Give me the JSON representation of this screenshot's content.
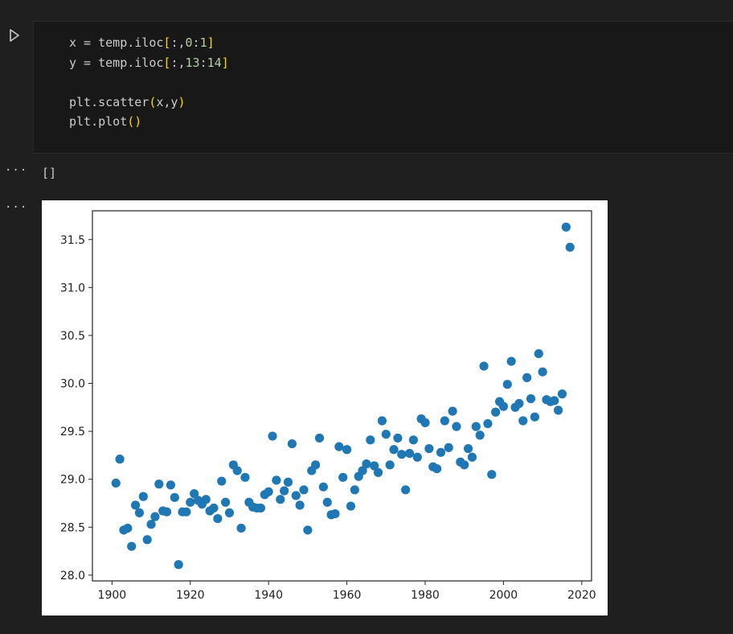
{
  "code_cell": {
    "run_icon": "play-triangle-icon",
    "lines": [
      [
        {
          "t": "x = temp.iloc",
          "c": ""
        },
        {
          "t": "[",
          "c": "tk-br"
        },
        {
          "t": ":,",
          "c": ""
        },
        {
          "t": "0",
          "c": "tk-num"
        },
        {
          "t": ":",
          "c": ""
        },
        {
          "t": "1",
          "c": "tk-num"
        },
        {
          "t": "]",
          "c": "tk-br"
        }
      ],
      [
        {
          "t": "y = temp.iloc",
          "c": ""
        },
        {
          "t": "[",
          "c": "tk-br"
        },
        {
          "t": ":,",
          "c": ""
        },
        {
          "t": "13",
          "c": "tk-num"
        },
        {
          "t": ":",
          "c": ""
        },
        {
          "t": "14",
          "c": "tk-num"
        },
        {
          "t": "]",
          "c": "tk-br"
        }
      ],
      [],
      [
        {
          "t": "plt.scatter",
          "c": ""
        },
        {
          "t": "(",
          "c": "tk-br"
        },
        {
          "t": "x,y",
          "c": ""
        },
        {
          "t": ")",
          "c": "tk-br"
        }
      ],
      [
        {
          "t": "plt.plot",
          "c": ""
        },
        {
          "t": "()",
          "c": "tk-br"
        }
      ]
    ]
  },
  "outputs": {
    "dots_1": "···",
    "text_output": "[]",
    "dots_2": "···"
  },
  "colors": {
    "background": "#1f1f1f",
    "cell_background": "#181818",
    "code_text": "#cccccc",
    "bracket": "#ffd700",
    "number": "#b5cea8",
    "marker": "#1f77b4"
  },
  "chart_data": {
    "type": "scatter",
    "title": "",
    "xlabel": "",
    "ylabel": "",
    "xlim": [
      1895,
      2022.5
    ],
    "ylim": [
      27.94,
      31.8
    ],
    "xticks": [
      1900,
      1920,
      1940,
      1960,
      1980,
      2000,
      2020
    ],
    "yticks": [
      28.0,
      28.5,
      29.0,
      29.5,
      30.0,
      30.5,
      31.0,
      31.5
    ],
    "xticklabels": [
      "1900",
      "1920",
      "1940",
      "1960",
      "1980",
      "2000",
      "2020"
    ],
    "yticklabels": [
      "28.0",
      "28.5",
      "29.0",
      "29.5",
      "30.0",
      "30.5",
      "31.0",
      "31.5"
    ],
    "grid": false,
    "series": [
      {
        "x": [
          1901,
          1902,
          1903,
          1904,
          1905,
          1906,
          1907,
          1908,
          1909,
          1910,
          1911,
          1912,
          1913,
          1914,
          1915,
          1916,
          1917,
          1918,
          1919,
          1920,
          1921,
          1922,
          1923,
          1924,
          1925,
          1926,
          1927,
          1928,
          1929,
          1930,
          1931,
          1932,
          1933,
          1934,
          1935,
          1936,
          1937,
          1938,
          1939,
          1940,
          1941,
          1942,
          1943,
          1944,
          1945,
          1946,
          1947,
          1948,
          1949,
          1950,
          1951,
          1952,
          1953,
          1954,
          1955,
          1956,
          1957,
          1958,
          1959,
          1960,
          1961,
          1962,
          1963,
          1964,
          1965,
          1966,
          1967,
          1968,
          1969,
          1970,
          1971,
          1972,
          1973,
          1974,
          1975,
          1976,
          1977,
          1978,
          1979,
          1980,
          1981,
          1982,
          1983,
          1984,
          1985,
          1986,
          1987,
          1988,
          1989,
          1990,
          1991,
          1992,
          1993,
          1994,
          1995,
          1996,
          1997,
          1998,
          1999,
          2000,
          2001,
          2002,
          2003,
          2004,
          2005,
          2006,
          2007,
          2008,
          2009,
          2010,
          2011,
          2012,
          2013,
          2014,
          2015,
          2016,
          2017
        ],
        "y": [
          28.96,
          29.21,
          28.47,
          28.49,
          28.3,
          28.73,
          28.65,
          28.82,
          28.37,
          28.53,
          28.61,
          28.95,
          28.67,
          28.66,
          28.94,
          28.81,
          28.11,
          28.66,
          28.66,
          28.76,
          28.85,
          28.78,
          28.74,
          28.79,
          28.67,
          28.7,
          28.59,
          28.98,
          28.76,
          28.65,
          29.15,
          29.09,
          28.49,
          29.02,
          28.76,
          28.71,
          28.7,
          28.7,
          28.84,
          28.87,
          29.45,
          28.99,
          28.79,
          28.88,
          28.97,
          29.37,
          28.83,
          28.73,
          28.89,
          28.47,
          29.09,
          29.15,
          29.43,
          28.92,
          28.76,
          28.63,
          28.64,
          29.34,
          29.02,
          29.31,
          28.72,
          28.89,
          29.03,
          29.09,
          29.16,
          29.41,
          29.14,
          29.07,
          29.61,
          29.47,
          29.15,
          29.31,
          29.43,
          29.26,
          28.89,
          29.27,
          29.41,
          29.23,
          29.63,
          29.59,
          29.32,
          29.13,
          29.11,
          29.28,
          29.61,
          29.33,
          29.71,
          29.55,
          29.18,
          29.15,
          29.32,
          29.23,
          29.55,
          29.46,
          30.18,
          29.58,
          29.05,
          29.7,
          29.81,
          29.76,
          29.99,
          30.23,
          29.75,
          29.79,
          29.61,
          30.06,
          29.84,
          29.65,
          30.31,
          30.12,
          29.83,
          29.81,
          29.82,
          29.72,
          29.89,
          31.63,
          31.42
        ]
      }
    ]
  }
}
